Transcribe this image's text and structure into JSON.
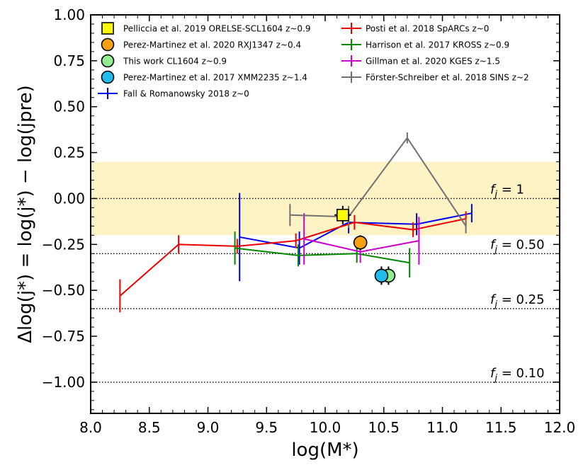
{
  "chart_data": {
    "type": "line",
    "xlabel": "log(M*)",
    "ylabel": "Δlog(j*) = log(j*) − log(jpre)",
    "xlim": [
      8.0,
      12.0
    ],
    "ylim": [
      -1.17,
      1.0
    ],
    "xticks": [
      "8.0",
      "8.5",
      "9.0",
      "9.5",
      "10.0",
      "10.5",
      "11.0",
      "11.5",
      "12.0"
    ],
    "yticks": [
      "1.00",
      "0.75",
      "0.50",
      "0.25",
      "0.00",
      "−0.25",
      "−0.50",
      "−0.75",
      "−1.00"
    ],
    "xtick_values": [
      8.0,
      8.5,
      9.0,
      9.5,
      10.0,
      10.5,
      11.0,
      11.5,
      12.0
    ],
    "ytick_values": [
      1.0,
      0.75,
      0.5,
      0.25,
      0.0,
      -0.25,
      -0.5,
      -0.75,
      -1.0
    ],
    "band": {
      "y0": -0.2,
      "y1": 0.2,
      "color": "#fdf3c4"
    },
    "reference_lines": [
      {
        "y": 0.0,
        "label": "f_j = 1",
        "sym": "f",
        "sub": "j",
        "rest": " = 1"
      },
      {
        "y": -0.3,
        "label": "f_j = 0.50",
        "sym": "f",
        "sub": "j",
        "rest": " = 0.50"
      },
      {
        "y": -0.6,
        "label": "f_j = 0.25",
        "sym": "f",
        "sub": "j",
        "rest": " = 0.25"
      },
      {
        "y": -1.0,
        "label": "f_j = 0.10",
        "sym": "f",
        "sub": "j",
        "rest": " = 0.10"
      }
    ],
    "series": [
      {
        "name": "Fall & Romanowsky 2018 z~0",
        "kind": "line",
        "color": "#0000ee",
        "x": [
          9.27,
          9.78,
          10.2,
          10.78,
          11.25
        ],
        "y": [
          -0.21,
          -0.27,
          -0.13,
          -0.14,
          -0.08
        ],
        "yerr": [
          0.24,
          0.09,
          0.06,
          0.06,
          0.05
        ]
      },
      {
        "name": "Posti et al. 2018 SpARCs z~0",
        "kind": "line",
        "color": "#ee0000",
        "x": [
          8.25,
          8.75,
          9.25,
          9.75,
          10.25,
          10.75,
          11.2
        ],
        "y": [
          -0.53,
          -0.25,
          -0.26,
          -0.23,
          -0.13,
          -0.17,
          -0.11
        ],
        "yerr": [
          0.09,
          0.05,
          0.04,
          0.04,
          0.04,
          0.04,
          0.04
        ]
      },
      {
        "name": "Harrison et al. 2017 KROSS z~0.9",
        "kind": "line",
        "color": "#008800",
        "x": [
          9.23,
          9.77,
          10.27,
          10.72
        ],
        "y": [
          -0.27,
          -0.31,
          -0.3,
          -0.35
        ],
        "yerr": [
          0.09,
          0.06,
          0.05,
          0.08
        ]
      },
      {
        "name": "Gillman et al. 2020 KGES z~1.5",
        "kind": "line",
        "color": "#cc00cc",
        "x": [
          9.82,
          10.3,
          10.8
        ],
        "y": [
          -0.22,
          -0.29,
          -0.23
        ],
        "yerr": [
          0.14,
          0.06,
          0.13
        ]
      },
      {
        "name": "Förster-Schreiber et al. 2018 SINS z~2",
        "kind": "line",
        "color": "#707070",
        "x": [
          9.7,
          10.2,
          10.7,
          11.2
        ],
        "y": [
          -0.09,
          -0.1,
          0.33,
          -0.15
        ],
        "yerr": [
          0.06,
          0.06,
          0.03,
          0.04
        ]
      },
      {
        "name": "Pelliccia et al. 2019 ORELSE-SCL1604 z~0.9",
        "kind": "point",
        "marker": "square",
        "color": "#ffff00",
        "x": [
          10.15
        ],
        "y": [
          -0.09
        ],
        "xerr": [
          0.07
        ],
        "yerr": [
          0.05
        ]
      },
      {
        "name": "Perez-Martinez et al. 2020 RXJ1347 z~0.4",
        "kind": "point",
        "marker": "circle",
        "color": "#f7a011",
        "x": [
          10.3
        ],
        "y": [
          -0.24
        ],
        "xerr": [
          0.06
        ],
        "yerr": [
          0.04
        ]
      },
      {
        "name": "This work CL1604 z~0.9",
        "kind": "point",
        "marker": "circle",
        "color": "#90ee90",
        "x": [
          10.54
        ],
        "y": [
          -0.42
        ],
        "xerr": [
          0.06
        ],
        "yerr": [
          0.05
        ]
      },
      {
        "name": "Perez-Martinez et al. 2017 XMM2235 z~1.4",
        "kind": "point",
        "marker": "circle",
        "color": "#22bbee",
        "x": [
          10.48
        ],
        "y": [
          -0.42
        ],
        "xerr": [
          0.05
        ],
        "yerr": [
          0.05
        ]
      }
    ],
    "legend_left": [
      "Pelliccia et al. 2019 ORELSE-SCL1604 z~0.9",
      "Perez-Martinez et al. 2020 RXJ1347 z~0.4",
      "This work CL1604 z~0.9",
      "Perez-Martinez et al. 2017 XMM2235 z~1.4",
      "Fall & Romanowsky 2018 z~0"
    ],
    "legend_right": [
      "Posti et al. 2018 SpARCs z~0",
      "Harrison et al. 2017 KROSS z~0.9",
      "Gillman et al. 2020 KGES z~1.5",
      "Förster-Schreiber et al. 2018 SINS z~2"
    ]
  }
}
